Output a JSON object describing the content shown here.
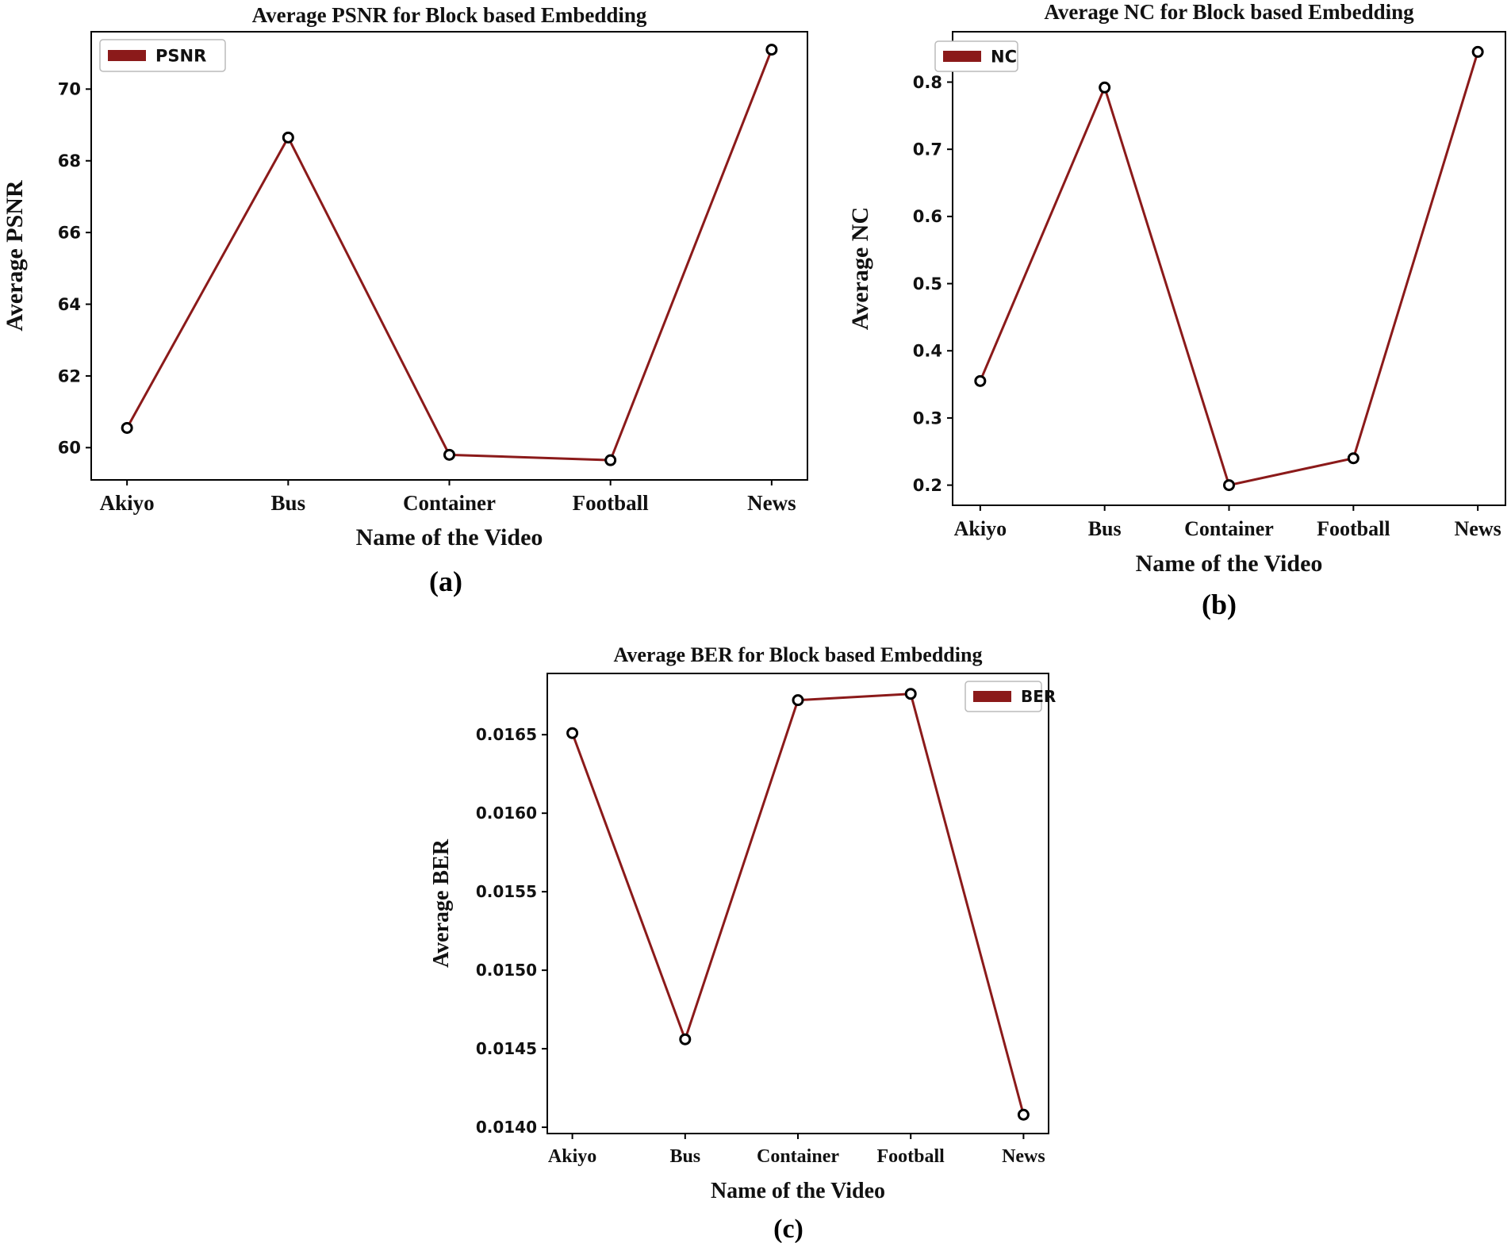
{
  "colors": {
    "line": "#8b1a1a",
    "marker_edge": "#000000",
    "marker_fill": "#ffffff"
  },
  "chart_data": [
    {
      "type": "line",
      "caption": "(a)",
      "title": "Average PSNR for Block based Embedding",
      "xlabel": "Name of the Video",
      "ylabel": "Average PSNR",
      "categories": [
        "Akiyo",
        "Bus",
        "Container",
        "Football",
        "News"
      ],
      "series": [
        {
          "name": "PSNR",
          "values": [
            60.55,
            68.65,
            59.8,
            59.65,
            71.1
          ]
        }
      ],
      "ylim": [
        59.1,
        71.6
      ],
      "yticks": [
        60,
        62,
        64,
        66,
        68,
        70
      ],
      "ytick_labels": [
        "60",
        "62",
        "64",
        "66",
        "68",
        "70"
      ],
      "legend": "top-left",
      "grid": false
    },
    {
      "type": "line",
      "caption": "(b)",
      "title": "Average NC for Block based Embedding",
      "xlabel": "Name of the Video",
      "ylabel": "Average NC",
      "categories": [
        "Akiyo",
        "Bus",
        "Container",
        "Football",
        "News"
      ],
      "series": [
        {
          "name": "NC",
          "values": [
            0.355,
            0.792,
            0.2,
            0.24,
            0.845
          ]
        }
      ],
      "ylim": [
        0.17,
        0.875
      ],
      "yticks": [
        0.2,
        0.3,
        0.4,
        0.5,
        0.6,
        0.7,
        0.8
      ],
      "ytick_labels": [
        "0.2",
        "0.3",
        "0.4",
        "0.5",
        "0.6",
        "0.7",
        "0.8"
      ],
      "legend": "top-left",
      "grid": false
    },
    {
      "type": "line",
      "caption": "(c)",
      "title": "Average BER for Block based Embedding",
      "xlabel": "Name of the Video",
      "ylabel": "Average BER",
      "categories": [
        "Akiyo",
        "Bus",
        "Container",
        "Football",
        "News"
      ],
      "series": [
        {
          "name": "BER",
          "values": [
            0.01651,
            0.01456,
            0.01672,
            0.01676,
            0.01408
          ]
        }
      ],
      "ylim": [
        0.01396,
        0.01689
      ],
      "yticks": [
        0.014,
        0.0145,
        0.015,
        0.0155,
        0.016,
        0.0165
      ],
      "ytick_labels": [
        "0.0140",
        "0.0145",
        "0.0150",
        "0.0155",
        "0.0160",
        "0.0165"
      ],
      "legend": "top-right",
      "grid": false
    }
  ]
}
